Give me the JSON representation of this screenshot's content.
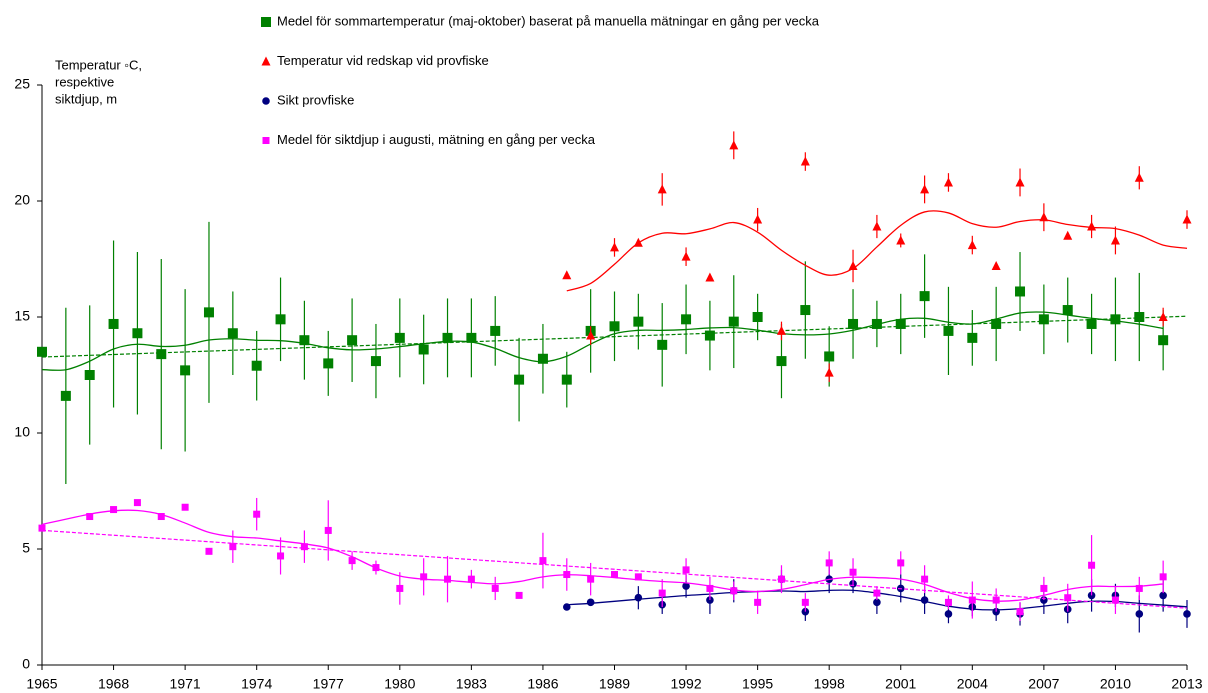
{
  "chart_data": {
    "type": "scatter",
    "y_label_lines": [
      "Temperatur  ◦C,",
      "respektive",
      "siktdjup, m"
    ],
    "x": [
      1965,
      1966,
      1967,
      1968,
      1969,
      1970,
      1971,
      1972,
      1973,
      1974,
      1975,
      1976,
      1977,
      1978,
      1979,
      1980,
      1981,
      1982,
      1983,
      1984,
      1985,
      1986,
      1987,
      1988,
      1989,
      1990,
      1991,
      1992,
      1993,
      1994,
      1995,
      1996,
      1997,
      1998,
      1999,
      2000,
      2001,
      2002,
      2003,
      2004,
      2005,
      2006,
      2007,
      2008,
      2009,
      2010,
      2011,
      2012,
      2013
    ],
    "series": [
      {
        "name": "Medel för sommartemperatur (maj-oktober) baserat på manuella mätningar en gång per vecka",
        "color": "#008000",
        "marker": "square",
        "trend": true,
        "values": [
          13.5,
          11.6,
          12.5,
          14.7,
          14.3,
          13.4,
          12.7,
          15.2,
          14.3,
          12.9,
          14.9,
          14.0,
          13.0,
          14.0,
          13.1,
          14.1,
          13.6,
          14.1,
          14.1,
          14.4,
          12.3,
          13.2,
          12.3,
          14.4,
          14.6,
          14.8,
          13.8,
          14.9,
          14.2,
          14.8,
          15.0,
          13.1,
          15.3,
          13.3,
          14.7,
          14.7,
          14.7,
          15.9,
          14.4,
          14.1,
          14.7,
          16.1,
          14.9,
          15.3,
          14.7,
          14.9,
          15.0,
          14.0,
          null
        ],
        "errors": [
          null,
          3.8,
          3.0,
          3.6,
          3.5,
          4.1,
          3.5,
          3.9,
          1.8,
          1.5,
          1.8,
          1.7,
          1.4,
          1.8,
          1.6,
          1.7,
          1.5,
          1.7,
          1.7,
          1.5,
          1.8,
          1.5,
          1.2,
          1.8,
          1.5,
          1.2,
          1.8,
          1.5,
          1.5,
          2.0,
          1.0,
          1.6,
          2.1,
          1.3,
          1.5,
          1.0,
          1.3,
          1.8,
          1.9,
          1.2,
          1.6,
          1.7,
          1.5,
          1.4,
          1.3,
          1.8,
          1.9,
          1.3,
          null
        ]
      },
      {
        "name": "Temperatur vid redskap vid provfiske",
        "color": "#ff0000",
        "marker": "triangle",
        "trend": false,
        "values": [
          null,
          null,
          null,
          null,
          null,
          null,
          null,
          null,
          null,
          null,
          null,
          null,
          null,
          null,
          null,
          null,
          null,
          null,
          null,
          null,
          null,
          null,
          16.8,
          14.2,
          18.0,
          18.2,
          20.5,
          17.6,
          16.7,
          22.4,
          19.2,
          14.4,
          21.7,
          12.6,
          17.2,
          18.9,
          18.3,
          20.5,
          20.8,
          18.1,
          17.2,
          20.8,
          19.3,
          18.5,
          18.9,
          18.3,
          21.0,
          15.0,
          19.2
        ],
        "errors": [
          null,
          null,
          null,
          null,
          null,
          null,
          null,
          null,
          null,
          null,
          null,
          null,
          null,
          null,
          null,
          null,
          null,
          null,
          null,
          null,
          null,
          null,
          null,
          0.4,
          0.4,
          null,
          0.7,
          0.4,
          null,
          0.6,
          0.5,
          0.4,
          0.4,
          0.4,
          0.7,
          0.5,
          0.3,
          0.6,
          0.4,
          0.4,
          null,
          0.6,
          0.6,
          null,
          0.5,
          0.6,
          0.5,
          0.4,
          0.4
        ]
      },
      {
        "name": "Sikt provfiske",
        "color": "#000080",
        "marker": "circle",
        "trend": false,
        "values": [
          null,
          null,
          null,
          null,
          null,
          null,
          null,
          null,
          null,
          null,
          null,
          null,
          null,
          null,
          null,
          null,
          null,
          null,
          null,
          null,
          null,
          null,
          2.5,
          2.7,
          null,
          2.9,
          2.6,
          3.4,
          2.8,
          3.2,
          null,
          3.7,
          2.3,
          3.7,
          3.5,
          2.7,
          3.3,
          2.8,
          2.2,
          2.5,
          2.3,
          2.2,
          2.8,
          2.4,
          3.0,
          3.0,
          2.2,
          3.0,
          2.2
        ],
        "errors": [
          null,
          null,
          null,
          null,
          null,
          null,
          null,
          null,
          null,
          null,
          null,
          null,
          null,
          null,
          null,
          null,
          null,
          null,
          null,
          null,
          null,
          null,
          null,
          null,
          null,
          0.5,
          0.4,
          0.5,
          0.6,
          0.5,
          null,
          0.4,
          0.4,
          0.6,
          0.4,
          0.5,
          0.6,
          0.6,
          0.4,
          0.4,
          0.4,
          0.5,
          0.6,
          0.6,
          0.7,
          0.5,
          0.8,
          0.7,
          0.6
        ]
      },
      {
        "name": "Medel för siktdjup i augusti, mätning en gång per vecka",
        "color": "#ff00ff",
        "marker": "small-square",
        "trend": true,
        "values": [
          5.9,
          null,
          6.4,
          6.7,
          7.0,
          6.4,
          6.8,
          4.9,
          5.1,
          6.5,
          4.7,
          5.1,
          5.8,
          4.5,
          4.2,
          3.3,
          3.8,
          3.7,
          3.7,
          3.3,
          3.0,
          4.5,
          3.9,
          3.7,
          3.9,
          3.8,
          3.1,
          4.1,
          3.3,
          3.2,
          2.7,
          3.7,
          2.7,
          4.4,
          4.0,
          3.1,
          4.4,
          3.7,
          2.7,
          2.8,
          2.8,
          2.3,
          3.3,
          2.9,
          4.3,
          2.8,
          3.3,
          3.8,
          null
        ],
        "errors": [
          null,
          null,
          null,
          null,
          null,
          null,
          null,
          null,
          0.7,
          0.7,
          0.8,
          0.7,
          1.3,
          0.4,
          0.3,
          0.7,
          0.8,
          1.0,
          0.4,
          0.5,
          null,
          1.2,
          0.7,
          0.7,
          null,
          null,
          0.6,
          0.5,
          0.5,
          0.4,
          0.5,
          0.6,
          0.4,
          0.5,
          0.6,
          0.3,
          0.5,
          0.6,
          0.3,
          0.8,
          0.5,
          0.4,
          0.5,
          0.6,
          1.3,
          0.6,
          0.5,
          0.7,
          null
        ]
      }
    ],
    "xlim": [
      1965,
      2013
    ],
    "xticks": [
      1965,
      1968,
      1971,
      1974,
      1977,
      1980,
      1983,
      1986,
      1989,
      1992,
      1995,
      1998,
      2001,
      2004,
      2007,
      2010,
      2013
    ],
    "ylim": [
      0,
      25
    ],
    "yticks": [
      0,
      5,
      10,
      15,
      20,
      25
    ],
    "grid": false
  }
}
